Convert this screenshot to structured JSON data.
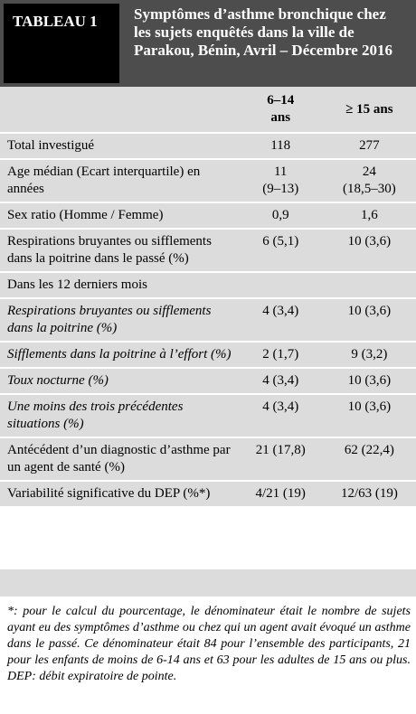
{
  "header": {
    "label": "TABLEAU 1",
    "title": "Symptômes d’asthme bronchique chez les sujets enquêtés dans la ville de Parakou, Bénin, Avril – Décembre 2016"
  },
  "table": {
    "columns": [
      [
        "6–14",
        "ans"
      ],
      [
        "≥ 15 ans"
      ]
    ],
    "rows": [
      {
        "label": "Total investigué",
        "values": [
          [
            "118"
          ],
          [
            "277"
          ]
        ]
      },
      {
        "label": "Age médian (Ecart interquartile) en années",
        "values": [
          [
            "11",
            "(9–13)"
          ],
          [
            "24",
            "(18,5–30)"
          ]
        ]
      },
      {
        "label": "Sex ratio (Homme / Femme)",
        "values": [
          [
            "0,9"
          ],
          [
            "1,6"
          ]
        ]
      },
      {
        "label": "Respirations bruyantes ou sifflements dans la poitrine dans le passé (%)",
        "values": [
          [
            "6 (5,1)"
          ],
          [
            "10 (3,6)"
          ]
        ]
      },
      {
        "label": "Dans les 12 derniers mois"
      },
      {
        "label": "Respirations bruyantes ou sifflements dans la poitrine (%)",
        "sub": true,
        "values": [
          [
            "4 (3,4)"
          ],
          [
            "10 (3,6)"
          ]
        ]
      },
      {
        "label": "Sifflements dans la poitrine à l’effort (%)",
        "sub": true,
        "values": [
          [
            "2 (1,7)"
          ],
          [
            "9 (3,2)"
          ]
        ]
      },
      {
        "label": "Toux nocturne (%)",
        "sub": true,
        "values": [
          [
            "4 (3,4)"
          ],
          [
            "10 (3,6)"
          ]
        ]
      },
      {
        "label": "Une moins des trois précédentes situations (%)",
        "sub": true,
        "values": [
          [
            "4 (3,4)"
          ],
          [
            "10 (3,6)"
          ]
        ]
      },
      {
        "label": "Antécédent d’un diagnostic d’asthme par un agent de santé (%)",
        "values": [
          [
            "21 (17,8)"
          ],
          [
            "62 (22,4)"
          ]
        ]
      },
      {
        "label": "Variabilité significative du DEP (%*)",
        "values": [
          [
            "4/21 (19)"
          ],
          [
            "12/63 (19)"
          ]
        ]
      }
    ]
  },
  "footnote": "*: pour le calcul du pourcentage, le dénominateur était le nombre de sujets ayant eu des symptômes d’asthme ou chez qui un agent avait évoqué un asthme dans le passé. Ce dénominateur était 84 pour l’ensemble des participants, 21 pour les enfants de moins de 6-14 ans et 63 pour les adultes de 15 ans ou plus. DEP: débit expiratoire de pointe."
}
